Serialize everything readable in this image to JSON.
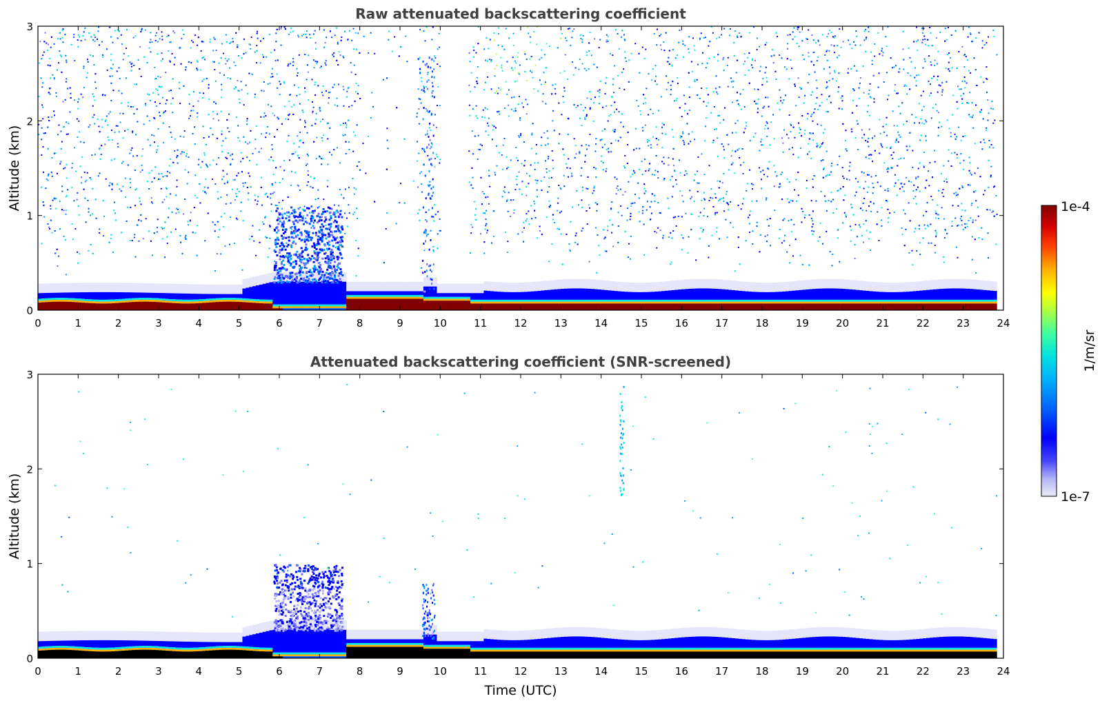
{
  "chart_data": [
    {
      "type": "heatmap",
      "title": "Raw attenuated backscattering coefficient",
      "xlabel": "",
      "ylabel": "Altitude (km)",
      "xlim": [
        0,
        24
      ],
      "ylim": [
        0,
        3
      ],
      "x_ticks": [
        "0",
        "1",
        "2",
        "3",
        "4",
        "5",
        "6",
        "7",
        "8",
        "9",
        "10",
        "11",
        "12",
        "13",
        "14",
        "15",
        "16",
        "17",
        "18",
        "19",
        "20",
        "21",
        "22",
        "23",
        "24"
      ],
      "y_ticks": [
        "0",
        "1",
        "2",
        "3"
      ],
      "data_time_range_utc": [
        0,
        23.83
      ],
      "profile": "raw",
      "grid": false
    },
    {
      "type": "heatmap",
      "title": "Attenuated backscattering coefficient (SNR-screened)",
      "xlabel": "Time (UTC)",
      "ylabel": "Altitude (km)",
      "xlim": [
        0,
        24
      ],
      "ylim": [
        0,
        3
      ],
      "x_ticks": [
        "0",
        "1",
        "2",
        "3",
        "4",
        "5",
        "6",
        "7",
        "8",
        "9",
        "10",
        "11",
        "12",
        "13",
        "14",
        "15",
        "16",
        "17",
        "18",
        "19",
        "20",
        "21",
        "22",
        "23",
        "24"
      ],
      "y_ticks": [
        "0",
        "1",
        "2",
        "3"
      ],
      "data_time_range_utc": [
        0,
        23.83
      ],
      "profile": "screened",
      "grid": false
    }
  ],
  "colorbar": {
    "label": "1/m/sr",
    "max_label": "1e-4",
    "min_label": "1e-7",
    "scale": "log",
    "range": [
      1e-07,
      0.0001
    ],
    "colormap": "jet",
    "colors": [
      "#e6e6fa",
      "#b4b4f5",
      "#6e6efa",
      "#0000ff",
      "#0050ff",
      "#00a0ff",
      "#00e5e5",
      "#40ff9a",
      "#b4ff40",
      "#ffff00",
      "#ffb000",
      "#ff5000",
      "#e00000",
      "#800000"
    ]
  }
}
